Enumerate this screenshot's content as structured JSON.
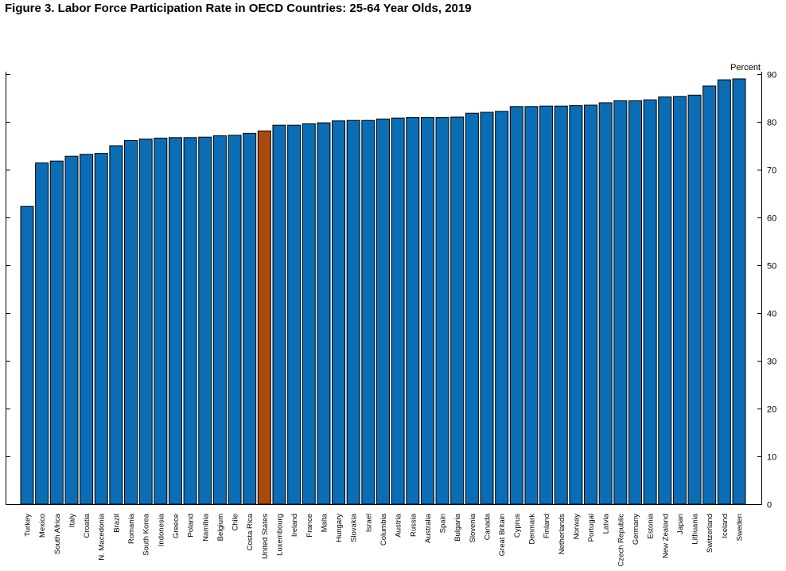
{
  "title": "Figure 3. Labor Force Participation Rate in OECD Countries: 25-64 Year Olds, 2019",
  "chart_data": {
    "type": "bar",
    "title": "Figure 3. Labor Force Participation Rate in OECD Countries: 25-64 Year Olds, 2019",
    "ylabel": "Percent",
    "xlabel": "",
    "ylim": [
      0,
      90
    ],
    "yticks": [
      0,
      10,
      20,
      30,
      40,
      50,
      60,
      70,
      80,
      90
    ],
    "y_axis_side": "right",
    "grid": false,
    "highlight": "United States",
    "colors": {
      "bar": "#0a6db5",
      "highlight": "#a84a0c",
      "outline": "#000000"
    },
    "categories": [
      "Turkey",
      "Mexico",
      "South Africa",
      "Italy",
      "Croatia",
      "N. Macedonia",
      "Brazil",
      "Romania",
      "South Korea",
      "Indonesia",
      "Greece",
      "Poland",
      "Namibia",
      "Belgium",
      "Chile",
      "Costa Rica",
      "United States",
      "Luxembourg",
      "Ireland",
      "France",
      "Malta",
      "Hungary",
      "Slovakia",
      "Israel",
      "Columbia",
      "Austria",
      "Russia",
      "Australia",
      "Spain",
      "Bulgaria",
      "Slovenia",
      "Canada",
      "Great Britain",
      "Cyprus",
      "Denmark",
      "Finland",
      "Netherlands",
      "Norway",
      "Portugal",
      "Latvia",
      "Czech Republic",
      "Germany",
      "Estonia",
      "New Zealand",
      "Japan",
      "Lithuania",
      "Switzerland",
      "Iceland",
      "Sweden"
    ],
    "values": [
      62.3,
      71.4,
      71.8,
      72.8,
      73.2,
      73.4,
      75.0,
      76.1,
      76.4,
      76.6,
      76.7,
      76.7,
      76.8,
      77.1,
      77.2,
      77.6,
      78.1,
      79.3,
      79.3,
      79.6,
      79.8,
      80.2,
      80.3,
      80.3,
      80.6,
      80.8,
      80.9,
      80.9,
      80.9,
      81.0,
      81.8,
      82.0,
      82.2,
      83.2,
      83.2,
      83.3,
      83.3,
      83.4,
      83.5,
      84.0,
      84.4,
      84.4,
      84.6,
      85.2,
      85.3,
      85.6,
      87.5,
      88.8,
      89.0
    ]
  }
}
